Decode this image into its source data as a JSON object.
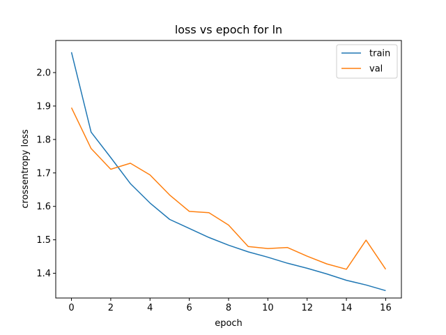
{
  "chart_data": {
    "type": "line",
    "title": "loss vs epoch for ln",
    "xlabel": "epoch",
    "ylabel": "crossentropy loss",
    "xlim": [
      -0.8,
      16.8
    ],
    "ylim": [
      1.326,
      2.096
    ],
    "xticks": [
      0,
      2,
      4,
      6,
      8,
      10,
      12,
      14,
      16
    ],
    "yticks": [
      1.4,
      1.5,
      1.6,
      1.7,
      1.8,
      1.9,
      2.0
    ],
    "xtick_labels": [
      "0",
      "2",
      "4",
      "6",
      "8",
      "10",
      "12",
      "14",
      "16"
    ],
    "ytick_labels": [
      "1.4",
      "1.5",
      "1.6",
      "1.7",
      "1.8",
      "1.9",
      "2.0"
    ],
    "grid": false,
    "legend_position": "top-right",
    "x": [
      0,
      1,
      2,
      3,
      4,
      5,
      6,
      7,
      8,
      9,
      10,
      11,
      12,
      13,
      14,
      15,
      16
    ],
    "series": [
      {
        "name": "train",
        "color": "#1f77b4",
        "values": [
          2.061,
          1.822,
          1.746,
          1.668,
          1.61,
          1.561,
          1.534,
          1.507,
          1.484,
          1.464,
          1.448,
          1.43,
          1.415,
          1.398,
          1.379,
          1.365,
          1.348
        ]
      },
      {
        "name": "val",
        "color": "#ff7f0e",
        "values": [
          1.895,
          1.773,
          1.711,
          1.729,
          1.694,
          1.634,
          1.585,
          1.581,
          1.544,
          1.48,
          1.474,
          1.477,
          1.451,
          1.428,
          1.412,
          1.499,
          1.412
        ]
      }
    ]
  }
}
